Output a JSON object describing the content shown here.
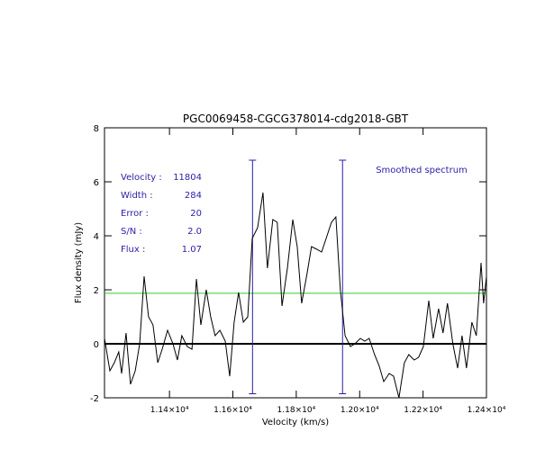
{
  "chart_data": {
    "type": "line",
    "title": "PGC0069458-CGCG378014-cdg2018-GBT",
    "xlabel": "Velocity (km/s)",
    "ylabel": "Flux density (mJy)",
    "annotation": "Smoothed spectrum",
    "info": [
      {
        "label": "Velocity :",
        "value": "11804"
      },
      {
        "label": "Width :",
        "value": "284"
      },
      {
        "label": "Error :",
        "value": "20"
      },
      {
        "label": "S/N :",
        "value": "2.0"
      },
      {
        "label": "Flux :",
        "value": "1.07"
      }
    ],
    "xlim": [
      11195,
      12400
    ],
    "ylim": [
      -2,
      8
    ],
    "xticks": [
      {
        "value": 11400,
        "label": "1.14×10⁴"
      },
      {
        "value": 11600,
        "label": "1.16×10⁴"
      },
      {
        "value": 11800,
        "label": "1.18×10⁴"
      },
      {
        "value": 12000,
        "label": "1.20×10⁴"
      },
      {
        "value": 12200,
        "label": "1.22×10⁴"
      },
      {
        "value": 12400,
        "label": "1.24×10⁴"
      }
    ],
    "yticks": [
      -2,
      0,
      2,
      4,
      6,
      8
    ],
    "markers": [
      11662,
      11946
    ],
    "marker_color": "#2a1ea8",
    "threshold": 1.87,
    "threshold_color": "#33cc33",
    "series": [
      {
        "color": "#000000",
        "x": [
          11195,
          11212,
          11226,
          11240,
          11249,
          11263,
          11277,
          11292,
          11306,
          11320,
          11334,
          11348,
          11363,
          11377,
          11394,
          11411,
          11425,
          11439,
          11456,
          11471,
          11485,
          11499,
          11516,
          11530,
          11544,
          11559,
          11576,
          11590,
          11604,
          11618,
          11633,
          11647,
          11661,
          11678,
          11695,
          11709,
          11726,
          11740,
          11755,
          11772,
          11789,
          11803,
          11817,
          11834,
          11848,
          11865,
          11880,
          11897,
          11911,
          11925,
          11939,
          11954,
          11971,
          11985,
          12002,
          12016,
          12030,
          12047,
          12061,
          12076,
          12093,
          12107,
          12124,
          12141,
          12155,
          12172,
          12186,
          12201,
          12218,
          12232,
          12249,
          12263,
          12277,
          12294,
          12309,
          12323,
          12337,
          12354,
          12368,
          12383,
          12391,
          12400
        ],
        "values": [
          0.2,
          -1.0,
          -0.7,
          -0.3,
          -1.1,
          0.4,
          -1.5,
          -1.0,
          0.0,
          2.5,
          1.0,
          0.7,
          -0.7,
          -0.2,
          0.5,
          0.0,
          -0.6,
          0.3,
          -0.1,
          -0.2,
          2.4,
          0.7,
          2.0,
          1.0,
          0.3,
          0.5,
          0.1,
          -1.2,
          0.8,
          1.9,
          0.8,
          1.0,
          3.9,
          4.3,
          5.6,
          2.8,
          4.6,
          4.5,
          1.4,
          2.8,
          4.6,
          3.6,
          1.5,
          2.6,
          3.6,
          3.5,
          3.4,
          4.0,
          4.5,
          4.7,
          2.0,
          0.3,
          -0.1,
          0.0,
          0.2,
          0.1,
          0.2,
          -0.4,
          -0.8,
          -1.4,
          -1.1,
          -1.2,
          -2.0,
          -0.7,
          -0.4,
          -0.6,
          -0.5,
          -0.1,
          1.6,
          0.2,
          1.3,
          0.4,
          1.5,
          0.0,
          -0.9,
          0.3,
          -0.9,
          0.8,
          0.3,
          3.0,
          1.5,
          2.5
        ]
      }
    ]
  }
}
